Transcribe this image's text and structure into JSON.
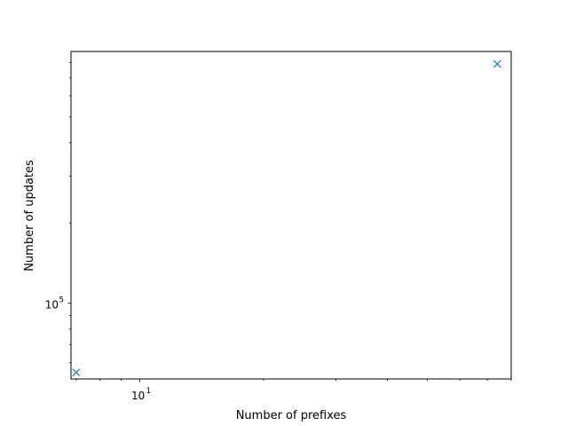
{
  "chart_data": {
    "type": "scatter",
    "xlabel": "Number of prefixes",
    "ylabel": "Number of updates",
    "xscale": "log",
    "yscale": "log",
    "xlim": [
      6.8,
      80
    ],
    "ylim": [
      52000,
      880000
    ],
    "marker": "x",
    "color": "#1f77b4",
    "grid": false,
    "xticks": [
      {
        "value": 10,
        "base": "10",
        "exp": "1"
      }
    ],
    "yticks": [
      {
        "value": 100000,
        "base": "10",
        "exp": "5"
      }
    ],
    "points": [
      {
        "x": 7,
        "y": 55000
      },
      {
        "x": 74,
        "y": 790000
      }
    ]
  }
}
